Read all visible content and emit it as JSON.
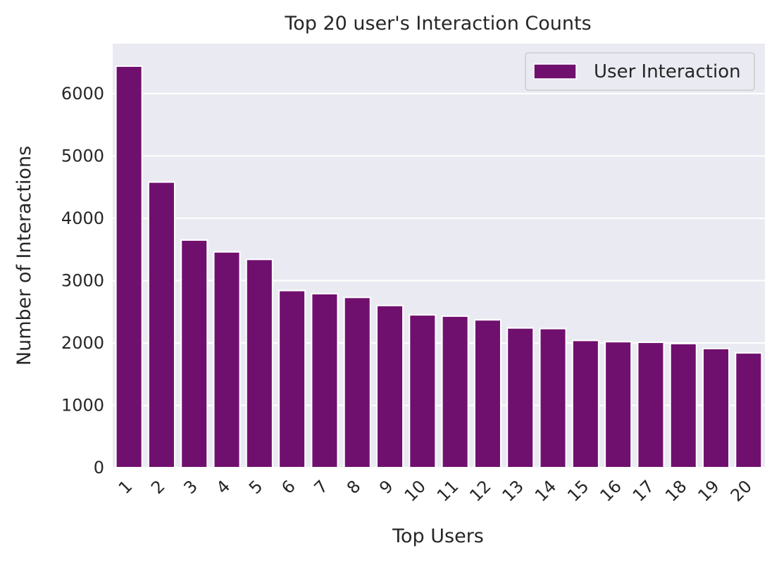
{
  "chart_data": {
    "type": "bar",
    "title": "Top 20 user's Interaction Counts",
    "xlabel": "Top Users",
    "ylabel": "Number of Interactions",
    "categories": [
      "1",
      "2",
      "3",
      "4",
      "5",
      "6",
      "7",
      "8",
      "9",
      "10",
      "11",
      "12",
      "13",
      "14",
      "15",
      "16",
      "17",
      "18",
      "19",
      "20"
    ],
    "series": [
      {
        "name": "User Interaction",
        "color": "#70106e",
        "values": [
          6440,
          4580,
          3650,
          3460,
          3340,
          2840,
          2790,
          2730,
          2600,
          2450,
          2430,
          2370,
          2240,
          2230,
          2040,
          2020,
          2010,
          1990,
          1910,
          1840
        ]
      }
    ],
    "ylim": [
      0,
      6800
    ],
    "yticks": [
      0,
      1000,
      2000,
      3000,
      4000,
      5000,
      6000
    ],
    "grid": true,
    "legend_position": "top-right",
    "x_tick_rotation": "45 degrees",
    "background_color": "#eaeaf2",
    "grid_color": "#ffffff"
  }
}
